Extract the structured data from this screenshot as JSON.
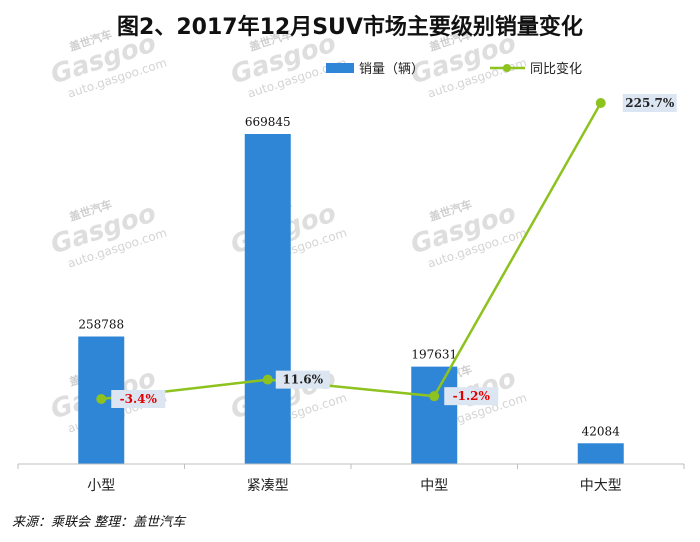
{
  "chart_data": {
    "type": "bar",
    "title": "图2、2017年12月SUV市场主要级别销量变化",
    "categories": [
      "小型",
      "紧凑型",
      "中型",
      "中大型"
    ],
    "series": [
      {
        "name": "销量（辆）",
        "kind": "bar",
        "color": "#2f86d6",
        "values": [
          258788,
          669845,
          197631,
          42084
        ],
        "labels": [
          "258788",
          "669845",
          "197631",
          "42084"
        ]
      },
      {
        "name": "同比变化",
        "kind": "line",
        "color": "#8dc21f",
        "values": [
          -3.4,
          11.6,
          -1.2,
          225.7
        ],
        "labels": [
          "-3.4%",
          "11.6%",
          "-1.2%",
          "225.7%"
        ],
        "label_colors": [
          "#e00000",
          "#222222",
          "#e00000",
          "#222222"
        ]
      }
    ],
    "legend_position": "top-right",
    "grid": false
  },
  "watermark": {
    "brand_cn": "盖世汽车",
    "logo": "Gasgoo",
    "url": "auto.gasgoo.com"
  },
  "source_note": "来源：乘联会    整理：盖世汽车"
}
